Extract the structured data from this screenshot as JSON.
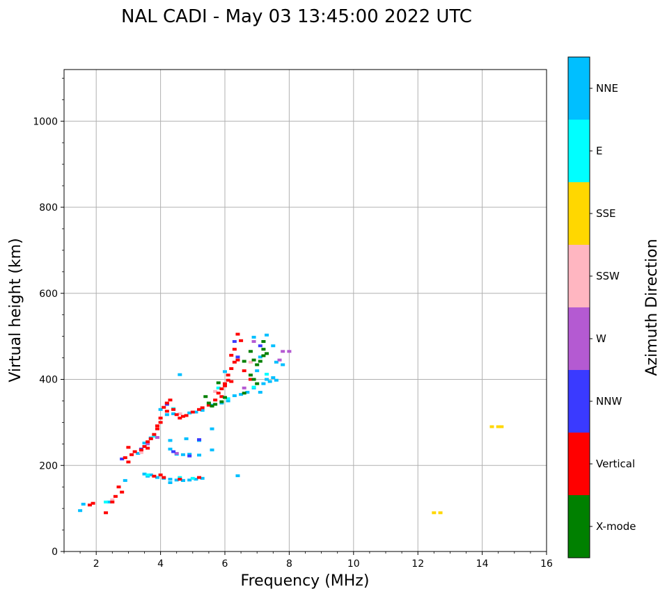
{
  "chart_data": {
    "type": "scatter",
    "title": "NAL CADI - May 03 13:45:00 2022 UTC",
    "xlabel": "Frequency (MHz)",
    "ylabel": "Virtual height (km)",
    "xlim": [
      1,
      16
    ],
    "ylim": [
      0,
      1120
    ],
    "grid": true,
    "x_ticks": [
      2,
      4,
      6,
      8,
      10,
      12,
      14,
      16
    ],
    "x_tick_labels": [
      "2",
      "4",
      "6",
      "8",
      "10",
      "12",
      "14",
      "16"
    ],
    "y_ticks": [
      0,
      200,
      400,
      600,
      800,
      1000
    ],
    "y_tick_labels": [
      "0",
      "200",
      "400",
      "600",
      "800",
      "1000"
    ],
    "colorbar": {
      "label": "Azimuth Direction",
      "categories": [
        "X-mode",
        "Vertical",
        "NNW",
        "W",
        "SSW",
        "SSE",
        "E",
        "NNE"
      ],
      "colors": [
        "#008000",
        "#ff0000",
        "#3a3aff",
        "#b45ad2",
        "#ffb6c1",
        "#ffd700",
        "#00ffff",
        "#00bfff"
      ]
    },
    "series": [
      {
        "name": "NNE",
        "color": "#00bfff",
        "points": [
          [
            1.5,
            95
          ],
          [
            1.6,
            110
          ],
          [
            2.4,
            115
          ],
          [
            2.9,
            165
          ],
          [
            3.5,
            180
          ],
          [
            3.6,
            175
          ],
          [
            3.7,
            178
          ],
          [
            3.9,
            172
          ],
          [
            4.1,
            170
          ],
          [
            4.3,
            168
          ],
          [
            4.5,
            166
          ],
          [
            4.7,
            165
          ],
          [
            4.9,
            166
          ],
          [
            5.1,
            168
          ],
          [
            5.3,
            170
          ],
          [
            4.3,
            160
          ],
          [
            4.7,
            165
          ],
          [
            4.8,
            262
          ],
          [
            4.3,
            258
          ],
          [
            5.2,
            258
          ],
          [
            4.3,
            238
          ],
          [
            4.5,
            226
          ],
          [
            4.7,
            225
          ],
          [
            4.9,
            226
          ],
          [
            5.2,
            224
          ],
          [
            5.6,
            236
          ],
          [
            5.6,
            285
          ],
          [
            3.3,
            228
          ],
          [
            3.5,
            252
          ],
          [
            3.7,
            264
          ],
          [
            4.0,
            330
          ],
          [
            4.2,
            318
          ],
          [
            4.4,
            320
          ],
          [
            4.6,
            320
          ],
          [
            4.9,
            322
          ],
          [
            5.1,
            324
          ],
          [
            5.3,
            328
          ],
          [
            5.6,
            340
          ],
          [
            5.9,
            345
          ],
          [
            6.1,
            350
          ],
          [
            6.3,
            362
          ],
          [
            6.5,
            365
          ],
          [
            6.7,
            370
          ],
          [
            6.9,
            380
          ],
          [
            7.2,
            390
          ],
          [
            7.4,
            395
          ],
          [
            7.6,
            398
          ],
          [
            7.8,
            434
          ],
          [
            7.6,
            440
          ],
          [
            7.5,
            478
          ],
          [
            7.3,
            503
          ],
          [
            6.9,
            498
          ],
          [
            6.4,
            176
          ],
          [
            6.0,
            418
          ],
          [
            4.6,
            411
          ],
          [
            7.0,
            420
          ],
          [
            7.1,
            452
          ],
          [
            7.3,
            400
          ],
          [
            7.5,
            404
          ],
          [
            7.1,
            370
          ]
        ]
      },
      {
        "name": "E",
        "color": "#00ffff",
        "points": [
          [
            2.3,
            115
          ],
          [
            3.6,
            178
          ],
          [
            4.6,
            172
          ],
          [
            5.0,
            170
          ],
          [
            6.1,
            355
          ],
          [
            6.9,
            382
          ],
          [
            5.8,
            380
          ],
          [
            3.8,
            268
          ],
          [
            4.4,
            332
          ],
          [
            7.3,
            412
          ]
        ]
      },
      {
        "name": "SSE",
        "color": "#ffd700",
        "points": [
          [
            12.5,
            90
          ],
          [
            12.7,
            90
          ],
          [
            14.3,
            290
          ],
          [
            14.5,
            290
          ],
          [
            14.6,
            290
          ]
        ]
      },
      {
        "name": "SSW",
        "color": "#ffb6c1",
        "points": [
          [
            2.5,
            120
          ],
          [
            3.4,
            230
          ],
          [
            4.6,
            320
          ],
          [
            6.8,
            440
          ],
          [
            5.7,
            372
          ]
        ]
      },
      {
        "name": "W",
        "color": "#b45ad2",
        "points": [
          [
            3.6,
            250
          ],
          [
            4.5,
            228
          ],
          [
            6.6,
            380
          ],
          [
            7.8,
            465
          ],
          [
            8.0,
            465
          ],
          [
            7.7,
            445
          ],
          [
            6.9,
            488
          ],
          [
            3.9,
            265
          ]
        ]
      },
      {
        "name": "NNW",
        "color": "#3a3aff",
        "points": [
          [
            2.8,
            215
          ],
          [
            3.4,
            238
          ],
          [
            4.4,
            232
          ],
          [
            4.9,
            222
          ],
          [
            6.4,
            452
          ],
          [
            6.3,
            488
          ],
          [
            5.2,
            260
          ],
          [
            7.1,
            478
          ],
          [
            4.2,
            342
          ]
        ]
      },
      {
        "name": "Vertical",
        "color": "#ff0000",
        "points": [
          [
            1.8,
            108
          ],
          [
            1.9,
            112
          ],
          [
            2.3,
            90
          ],
          [
            2.5,
            115
          ],
          [
            2.6,
            128
          ],
          [
            2.7,
            150
          ],
          [
            2.8,
            138
          ],
          [
            2.9,
            218
          ],
          [
            3.0,
            208
          ],
          [
            3.1,
            225
          ],
          [
            3.0,
            242
          ],
          [
            3.2,
            232
          ],
          [
            3.4,
            236
          ],
          [
            3.5,
            244
          ],
          [
            3.6,
            240
          ],
          [
            3.7,
            262
          ],
          [
            3.8,
            272
          ],
          [
            3.9,
            285
          ],
          [
            4.0,
            300
          ],
          [
            3.9,
            292
          ],
          [
            4.0,
            310
          ],
          [
            4.1,
            335
          ],
          [
            4.2,
            345
          ],
          [
            4.3,
            352
          ],
          [
            4.4,
            330
          ],
          [
            4.5,
            318
          ],
          [
            4.6,
            310
          ],
          [
            4.7,
            314
          ],
          [
            4.8,
            316
          ],
          [
            5.0,
            324
          ],
          [
            5.2,
            330
          ],
          [
            5.3,
            334
          ],
          [
            5.5,
            340
          ],
          [
            5.7,
            352
          ],
          [
            5.8,
            368
          ],
          [
            5.9,
            378
          ],
          [
            6.0,
            390
          ],
          [
            6.1,
            410
          ],
          [
            6.2,
            425
          ],
          [
            6.3,
            440
          ],
          [
            6.4,
            445
          ],
          [
            6.2,
            456
          ],
          [
            6.3,
            470
          ],
          [
            6.4,
            505
          ],
          [
            6.5,
            490
          ],
          [
            6.0,
            385
          ],
          [
            6.1,
            398
          ],
          [
            6.6,
            420
          ],
          [
            6.8,
            400
          ],
          [
            3.8,
            175
          ],
          [
            4.0,
            178
          ],
          [
            4.1,
            172
          ],
          [
            4.6,
            168
          ],
          [
            5.2,
            172
          ],
          [
            6.2,
            395
          ],
          [
            5.9,
            360
          ],
          [
            4.2,
            326
          ],
          [
            3.6,
            255
          ]
        ]
      },
      {
        "name": "X-mode",
        "color": "#008000",
        "points": [
          [
            5.5,
            345
          ],
          [
            5.7,
            342
          ],
          [
            5.9,
            348
          ],
          [
            6.0,
            358
          ],
          [
            5.4,
            360
          ],
          [
            5.8,
            392
          ],
          [
            6.6,
            368
          ],
          [
            6.8,
            410
          ],
          [
            6.9,
            400
          ],
          [
            7.0,
            434
          ],
          [
            7.1,
            442
          ],
          [
            7.2,
            455
          ],
          [
            7.3,
            460
          ],
          [
            7.2,
            470
          ],
          [
            7.2,
            488
          ],
          [
            6.8,
            465
          ],
          [
            7.0,
            390
          ],
          [
            6.6,
            442
          ],
          [
            6.9,
            445
          ],
          [
            5.6,
            338
          ]
        ]
      }
    ]
  }
}
